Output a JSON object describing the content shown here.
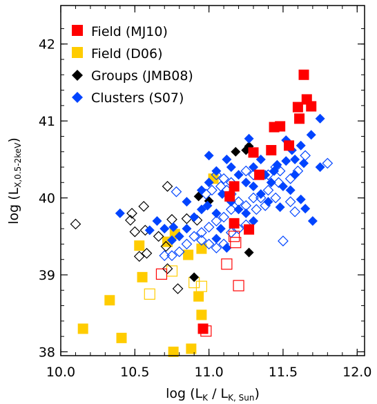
{
  "chart_data": {
    "type": "scatter",
    "title": "",
    "xlabel": {
      "main": "log (L",
      "sub1": "K",
      "mid": " / L",
      "sub2": "K, Sun",
      "end": ")"
    },
    "ylabel": {
      "main": "log (L",
      "sub": "X,0.5-2keV",
      "end": ")"
    },
    "xlim": [
      10.0,
      12.05
    ],
    "ylim": [
      37.95,
      42.5
    ],
    "xticks": [
      10.0,
      10.5,
      11.0,
      11.5,
      12.0
    ],
    "xtick_labels": [
      "10.0",
      "10.5",
      "11.0",
      "11.5",
      "12.0"
    ],
    "yticks": [
      38,
      39,
      40,
      41,
      42
    ],
    "ytick_labels": [
      "38",
      "39",
      "40",
      "41",
      "42"
    ],
    "legend": {
      "placement": "top-left",
      "entries": [
        {
          "label": "Field (MJ10)",
          "marker": "square",
          "color": "#ff0000"
        },
        {
          "label": "Field (D06)",
          "marker": "square",
          "color": "#ffcc00"
        },
        {
          "label": "Groups (JMB08)",
          "marker": "diamond",
          "color": "#000000"
        },
        {
          "label": "Clusters (S07)",
          "marker": "diamond",
          "color": "#0044ff"
        }
      ]
    },
    "series": [
      {
        "name": "Field (MJ10)",
        "marker": "square",
        "color": "#ff0000",
        "filled": [
          [
            11.64,
            41.6
          ],
          [
            11.6,
            41.18
          ],
          [
            11.66,
            41.28
          ],
          [
            11.69,
            41.19
          ],
          [
            11.61,
            41.03
          ],
          [
            11.44,
            40.92
          ],
          [
            11.48,
            40.93
          ],
          [
            11.54,
            40.68
          ],
          [
            11.42,
            40.62
          ],
          [
            11.3,
            40.59
          ],
          [
            11.34,
            40.3
          ],
          [
            11.17,
            40.15
          ],
          [
            11.17,
            39.67
          ],
          [
            11.27,
            39.59
          ],
          [
            10.96,
            38.3
          ],
          [
            11.14,
            40.02
          ]
        ],
        "open": [
          [
            10.68,
            39.01
          ],
          [
            11.18,
            39.42
          ],
          [
            11.12,
            39.14
          ],
          [
            11.2,
            38.86
          ],
          [
            10.98,
            38.27
          ],
          [
            11.17,
            39.5
          ]
        ]
      },
      {
        "name": "Field (D06)",
        "marker": "square",
        "color": "#ffcc00",
        "filled": [
          [
            11.03,
            40.25
          ],
          [
            10.72,
            39.43
          ],
          [
            10.53,
            39.38
          ],
          [
            10.77,
            39.53
          ],
          [
            10.86,
            39.26
          ],
          [
            10.95,
            39.34
          ],
          [
            10.55,
            38.97
          ],
          [
            10.33,
            38.67
          ],
          [
            10.93,
            38.72
          ],
          [
            10.95,
            38.48
          ],
          [
            10.15,
            38.3
          ],
          [
            10.41,
            38.18
          ],
          [
            10.76,
            38.0
          ],
          [
            10.88,
            38.04
          ]
        ],
        "open": [
          [
            10.6,
            38.75
          ],
          [
            10.9,
            38.9
          ],
          [
            10.95,
            38.85
          ],
          [
            10.75,
            39.05
          ]
        ]
      },
      {
        "name": "Groups (JMB08)",
        "marker": "diamond",
        "color": "#000000",
        "filled": [
          [
            11.27,
            40.67
          ],
          [
            11.25,
            40.62
          ],
          [
            11.18,
            40.6
          ],
          [
            10.93,
            40.02
          ],
          [
            11.0,
            39.96
          ],
          [
            11.27,
            39.29
          ],
          [
            10.9,
            38.97
          ]
        ],
        "open": [
          [
            10.1,
            39.66
          ],
          [
            10.56,
            39.89
          ],
          [
            10.48,
            39.8
          ],
          [
            10.72,
            40.15
          ],
          [
            10.75,
            39.72
          ],
          [
            10.85,
            39.73
          ],
          [
            10.92,
            39.71
          ],
          [
            10.57,
            39.58
          ],
          [
            10.5,
            39.56
          ],
          [
            10.47,
            39.71
          ],
          [
            10.53,
            39.24
          ],
          [
            10.58,
            39.28
          ],
          [
            10.66,
            39.5
          ],
          [
            10.71,
            39.37
          ],
          [
            10.72,
            39.08
          ],
          [
            10.79,
            38.82
          ]
        ]
      },
      {
        "name": "Clusters (S07)",
        "marker": "diamond",
        "color": "#0044ff",
        "filled": [
          [
            11.75,
            41.03
          ],
          [
            11.52,
            40.75
          ],
          [
            11.62,
            40.68
          ],
          [
            11.69,
            40.82
          ],
          [
            11.56,
            40.62
          ],
          [
            11.27,
            40.77
          ],
          [
            11.46,
            40.43
          ],
          [
            11.52,
            40.48
          ],
          [
            11.58,
            40.5
          ],
          [
            11.64,
            40.45
          ],
          [
            11.75,
            40.4
          ],
          [
            11.44,
            40.35
          ],
          [
            11.38,
            40.3
          ],
          [
            11.55,
            40.1
          ],
          [
            11.62,
            39.98
          ],
          [
            11.65,
            39.86
          ],
          [
            11.48,
            39.88
          ],
          [
            11.4,
            39.95
          ],
          [
            11.35,
            40.05
          ],
          [
            11.3,
            40.15
          ],
          [
            11.25,
            40.2
          ],
          [
            11.2,
            40.3
          ],
          [
            11.15,
            40.4
          ],
          [
            11.12,
            40.5
          ],
          [
            11.05,
            40.35
          ],
          [
            11.0,
            40.2
          ],
          [
            11.09,
            40.05
          ],
          [
            11.15,
            39.95
          ],
          [
            11.2,
            39.85
          ],
          [
            11.25,
            39.8
          ],
          [
            11.3,
            39.7
          ],
          [
            11.05,
            39.8
          ],
          [
            10.99,
            39.9
          ],
          [
            10.95,
            39.85
          ],
          [
            10.9,
            39.75
          ],
          [
            10.85,
            39.6
          ],
          [
            10.8,
            39.5
          ],
          [
            10.75,
            39.45
          ],
          [
            10.7,
            39.6
          ],
          [
            10.65,
            39.7
          ],
          [
            10.6,
            39.58
          ],
          [
            10.85,
            39.95
          ],
          [
            10.95,
            40.1
          ],
          [
            11.0,
            40.55
          ],
          [
            10.4,
            39.8
          ],
          [
            10.76,
            39.62
          ],
          [
            11.08,
            39.6
          ],
          [
            11.05,
            39.47
          ],
          [
            11.12,
            39.35
          ],
          [
            11.3,
            40.4
          ],
          [
            11.35,
            40.5
          ],
          [
            11.42,
            40.2
          ],
          [
            11.5,
            40.15
          ],
          [
            11.58,
            40.3
          ],
          [
            11.7,
            39.7
          ]
        ],
        "open": [
          [
            11.8,
            40.45
          ],
          [
            11.6,
            40.35
          ],
          [
            11.55,
            40.25
          ],
          [
            11.47,
            40.2
          ],
          [
            11.4,
            40.1
          ],
          [
            11.35,
            40.0
          ],
          [
            11.3,
            40.0
          ],
          [
            11.25,
            39.9
          ],
          [
            11.2,
            39.95
          ],
          [
            11.15,
            39.85
          ],
          [
            11.1,
            39.75
          ],
          [
            11.05,
            39.7
          ],
          [
            11.0,
            39.62
          ],
          [
            10.95,
            39.55
          ],
          [
            10.9,
            39.5
          ],
          [
            10.85,
            39.4
          ],
          [
            10.8,
            39.3
          ],
          [
            10.75,
            39.25
          ],
          [
            10.7,
            39.25
          ],
          [
            10.78,
            40.08
          ],
          [
            11.1,
            40.25
          ],
          [
            11.15,
            40.2
          ],
          [
            11.05,
            40.3
          ],
          [
            11.08,
            40.15
          ],
          [
            11.12,
            40.1
          ],
          [
            11.15,
            40.05
          ],
          [
            11.02,
            40.1
          ],
          [
            10.98,
            40.05
          ],
          [
            11.25,
            40.35
          ],
          [
            11.3,
            40.3
          ],
          [
            11.1,
            39.4
          ],
          [
            11.05,
            39.35
          ],
          [
            11.0,
            39.4
          ],
          [
            10.95,
            39.45
          ],
          [
            11.15,
            39.55
          ],
          [
            11.2,
            39.6
          ],
          [
            11.25,
            39.65
          ],
          [
            11.45,
            40.4
          ],
          [
            11.55,
            39.95
          ],
          [
            11.5,
            39.44
          ],
          [
            11.65,
            40.55
          ],
          [
            11.58,
            39.82
          ],
          [
            11.45,
            40.0
          ],
          [
            11.38,
            39.9
          ],
          [
            11.32,
            39.85
          ],
          [
            11.4,
            40.3
          ],
          [
            11.48,
            40.35
          ]
        ]
      }
    ]
  }
}
